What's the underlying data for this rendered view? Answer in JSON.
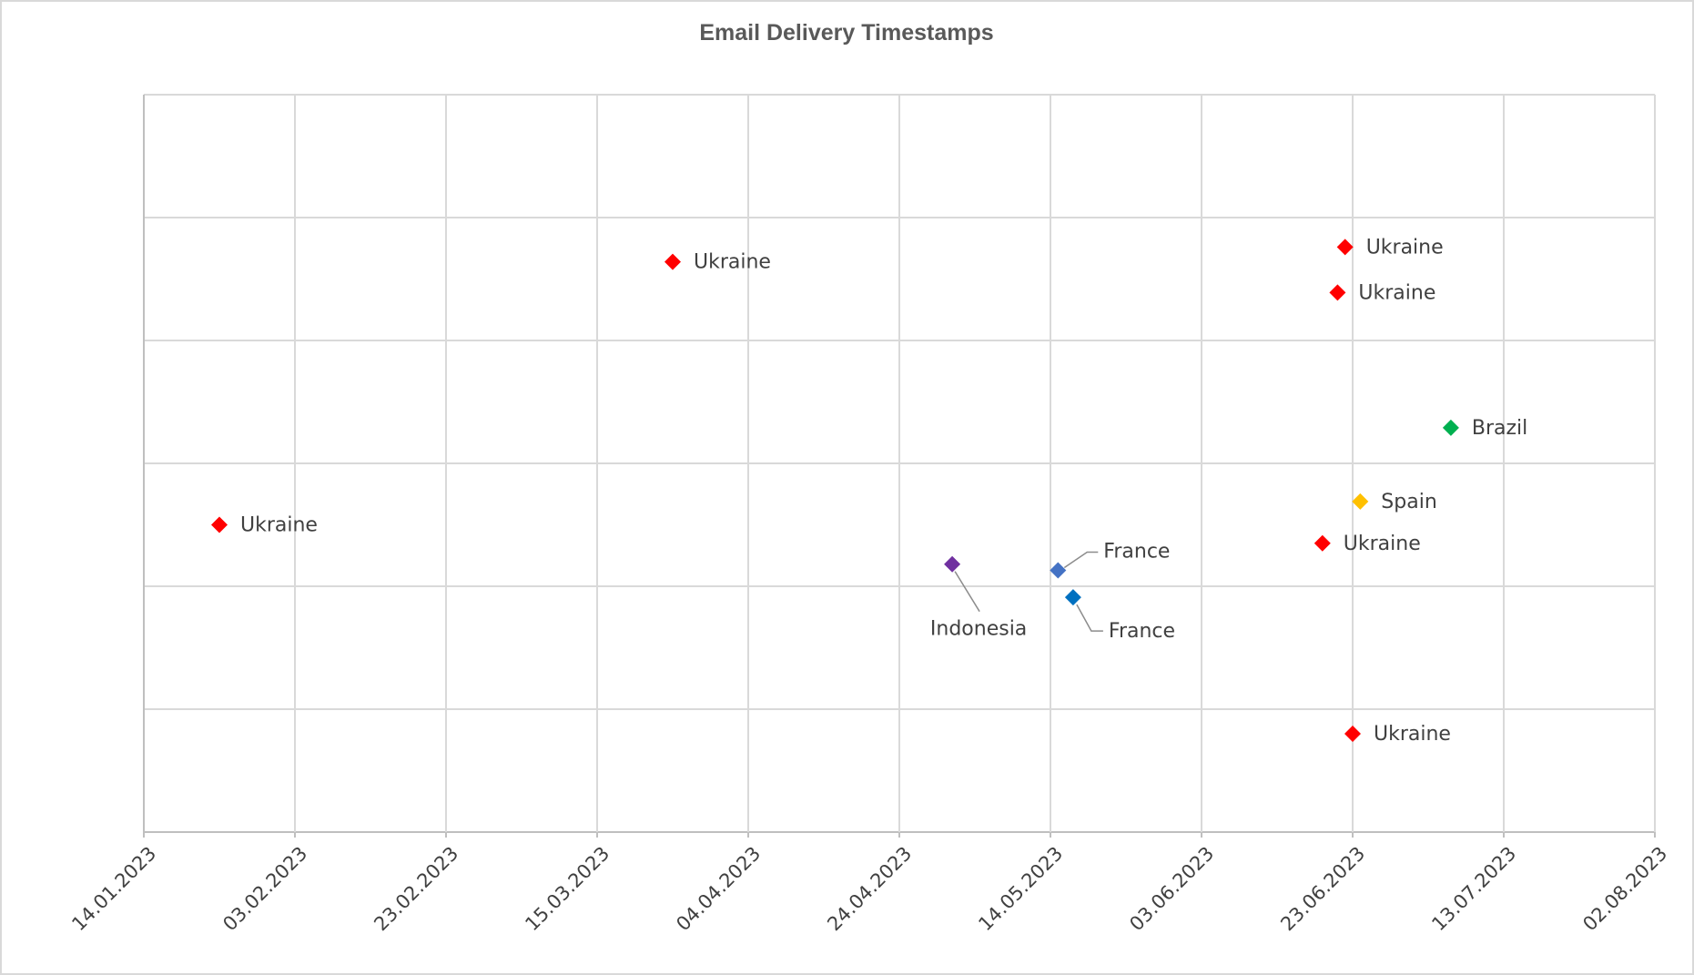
{
  "chart_data": {
    "type": "scatter",
    "title": "Email Delivery Timestamps",
    "xlabel": "",
    "ylabel": "",
    "x_axis": {
      "type": "date",
      "min": "2023-01-14",
      "max": "2023-08-02",
      "ticks": [
        "14.01.2023",
        "03.02.2023",
        "23.02.2023",
        "15.03.2023",
        "04.04.2023",
        "24.04.2023",
        "14.05.2023",
        "03.06.2023",
        "23.06.2023",
        "13.07.2023",
        "02.08.2023"
      ]
    },
    "y_axis": {
      "min": 0,
      "max": 6,
      "major_unit": 1,
      "tick_labels_visible": false
    },
    "grid": true,
    "legend": "none",
    "points": [
      {
        "date": "2023-01-24",
        "y": 2.5,
        "label": "Ukraine",
        "color": "#ff0000"
      },
      {
        "date": "2023-03-25",
        "y": 4.64,
        "label": "Ukraine",
        "color": "#ff0000"
      },
      {
        "date": "2023-05-01",
        "y": 2.18,
        "label": "Indonesia",
        "color": "#7030a0"
      },
      {
        "date": "2023-05-15",
        "y": 2.13,
        "label": "France",
        "color": "#4472c4"
      },
      {
        "date": "2023-05-17",
        "y": 1.91,
        "label": "France",
        "color": "#0070c0"
      },
      {
        "date": "2023-06-19",
        "y": 2.35,
        "label": "Ukraine",
        "color": "#ff0000"
      },
      {
        "date": "2023-06-21",
        "y": 4.39,
        "label": "Ukraine",
        "color": "#ff0000"
      },
      {
        "date": "2023-06-22",
        "y": 4.76,
        "label": "Ukraine",
        "color": "#ff0000"
      },
      {
        "date": "2023-06-24",
        "y": 2.69,
        "label": "Spain",
        "color": "#ffc000"
      },
      {
        "date": "2023-06-23",
        "y": 0.8,
        "label": "Ukraine",
        "color": "#ff0000"
      },
      {
        "date": "2023-07-06",
        "y": 3.29,
        "label": "Brazil",
        "color": "#00b050"
      }
    ]
  }
}
